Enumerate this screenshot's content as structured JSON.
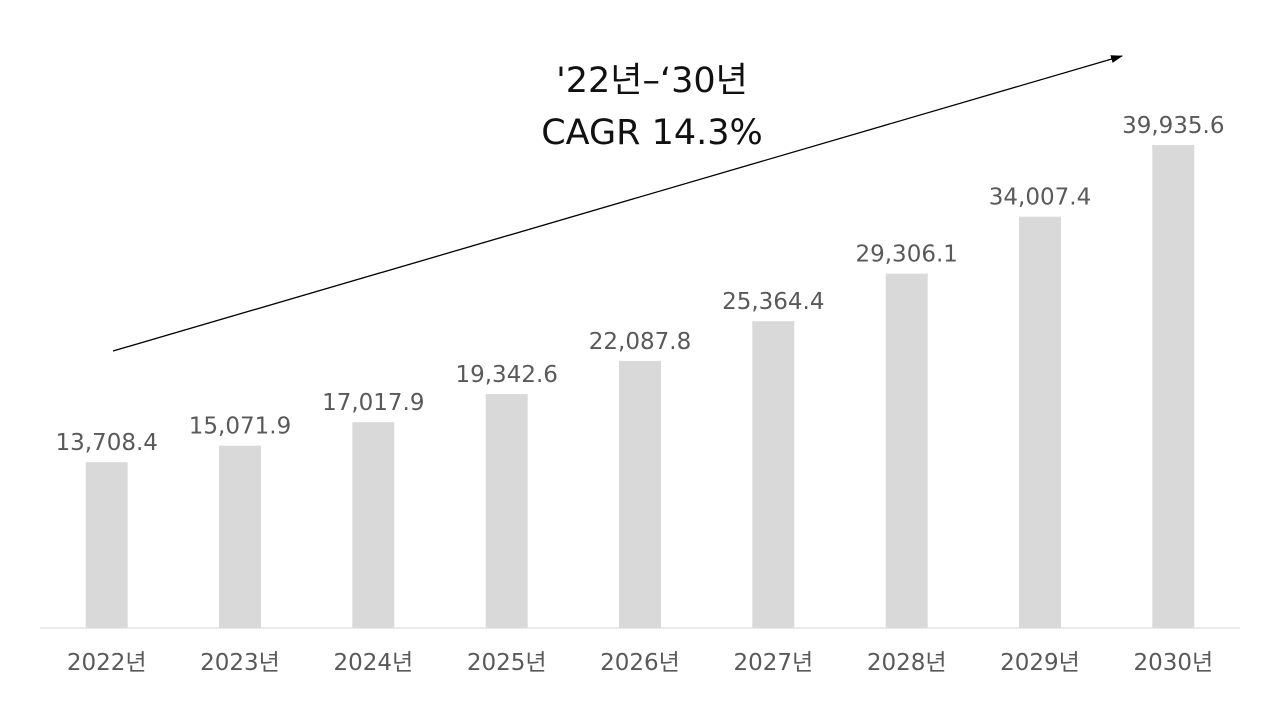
{
  "chart_data": {
    "type": "bar",
    "title": "",
    "xlabel": "",
    "ylabel": "",
    "categories": [
      "2022년",
      "2023년",
      "2024년",
      "2025년",
      "2026년",
      "2027년",
      "2028년",
      "2029년",
      "2030년"
    ],
    "values": [
      13708.4,
      15071.9,
      17017.9,
      19342.6,
      22087.8,
      25364.4,
      29306.1,
      34007.4,
      39935.6
    ],
    "data_labels": [
      "13,708.4",
      "15,071.9",
      "17,017.9",
      "19,342.6",
      "22,087.8",
      "25,364.4",
      "29,306.1",
      "34,007.4",
      "39,935.6"
    ],
    "ylim": [
      0,
      40000
    ],
    "grid": false,
    "legend": "none",
    "bar_color": "#d9d9d9",
    "annotation": {
      "line1": "'22년–‘30년",
      "line2": "CAGR 14.3%",
      "arrow": "upward trend arrow from 2022 to 2030"
    }
  }
}
